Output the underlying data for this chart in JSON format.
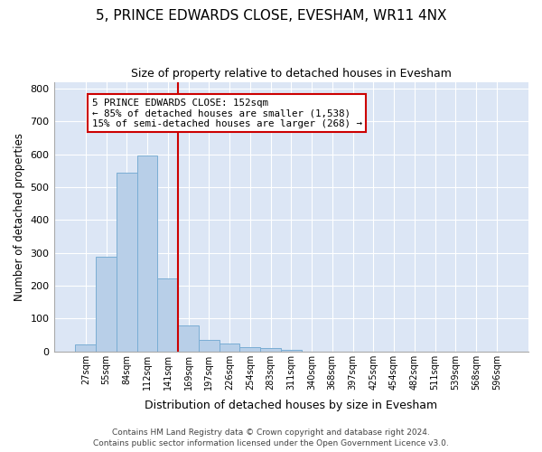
{
  "title": "5, PRINCE EDWARDS CLOSE, EVESHAM, WR11 4NX",
  "subtitle": "Size of property relative to detached houses in Evesham",
  "xlabel": "Distribution of detached houses by size in Evesham",
  "ylabel": "Number of detached properties",
  "bar_color": "#b8cfe8",
  "bar_edge_color": "#7aadd4",
  "background_color": "#dce6f5",
  "grid_color": "#ffffff",
  "categories": [
    "27sqm",
    "55sqm",
    "84sqm",
    "112sqm",
    "141sqm",
    "169sqm",
    "197sqm",
    "226sqm",
    "254sqm",
    "283sqm",
    "311sqm",
    "340sqm",
    "368sqm",
    "397sqm",
    "425sqm",
    "454sqm",
    "482sqm",
    "511sqm",
    "539sqm",
    "568sqm",
    "596sqm"
  ],
  "values": [
    22,
    287,
    543,
    596,
    222,
    78,
    35,
    25,
    13,
    9,
    6,
    0,
    0,
    0,
    0,
    0,
    0,
    0,
    0,
    0,
    0
  ],
  "ylim": [
    0,
    820
  ],
  "yticks": [
    0,
    100,
    200,
    300,
    400,
    500,
    600,
    700,
    800
  ],
  "redline_index": 4.5,
  "annotation_line1": "5 PRINCE EDWARDS CLOSE: 152sqm",
  "annotation_line2": "← 85% of detached houses are smaller (1,538)",
  "annotation_line3": "15% of semi-detached houses are larger (268) →",
  "annotation_box_color": "#ffffff",
  "annotation_box_edge": "#cc0000",
  "redline_color": "#cc0000",
  "footer1": "Contains HM Land Registry data © Crown copyright and database right 2024.",
  "footer2": "Contains public sector information licensed under the Open Government Licence v3.0."
}
